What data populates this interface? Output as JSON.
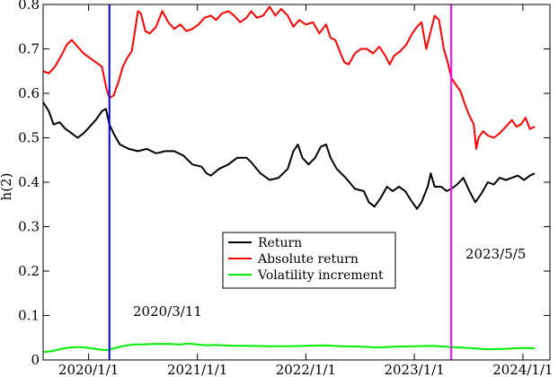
{
  "chart_data": {
    "type": "line",
    "title": "",
    "xlabel": "",
    "ylabel": "h(2)",
    "xlim": [
      "2019-08-01",
      "2024-04-01"
    ],
    "ylim": [
      0,
      0.8
    ],
    "x_ticks": [
      {
        "date": "2020-01-01",
        "label": "2020/1/1"
      },
      {
        "date": "2021-01-01",
        "label": "2021/1/1"
      },
      {
        "date": "2022-01-01",
        "label": "2022/1/1"
      },
      {
        "date": "2023-01-01",
        "label": "2023/1/1"
      },
      {
        "date": "2024-01-01",
        "label": "2024/1/1"
      }
    ],
    "y_ticks": [
      {
        "value": 0,
        "label": "0"
      },
      {
        "value": 0.1,
        "label": "0.1"
      },
      {
        "value": 0.2,
        "label": "0.2"
      },
      {
        "value": 0.3,
        "label": "0.3"
      },
      {
        "value": 0.4,
        "label": "0.4"
      },
      {
        "value": 0.5,
        "label": "0.5"
      },
      {
        "value": 0.6,
        "label": "0.6"
      },
      {
        "value": 0.7,
        "label": "0.7"
      },
      {
        "value": 0.8,
        "label": "0.8"
      }
    ],
    "grid": false,
    "legend_position": "center",
    "series": [
      {
        "name": "Return",
        "color": "#000000",
        "points": [
          [
            "2019-08-01",
            0.58
          ],
          [
            "2019-08-20",
            0.56
          ],
          [
            "2019-09-05",
            0.53
          ],
          [
            "2019-09-25",
            0.535
          ],
          [
            "2019-10-15",
            0.52
          ],
          [
            "2019-11-05",
            0.51
          ],
          [
            "2019-11-25",
            0.5
          ],
          [
            "2019-12-15",
            0.51
          ],
          [
            "2020-01-05",
            0.525
          ],
          [
            "2020-01-25",
            0.54
          ],
          [
            "2020-02-15",
            0.56
          ],
          [
            "2020-02-28",
            0.565
          ],
          [
            "2020-03-11",
            0.53
          ],
          [
            "2020-03-25",
            0.51
          ],
          [
            "2020-04-15",
            0.485
          ],
          [
            "2020-05-15",
            0.475
          ],
          [
            "2020-06-15",
            0.47
          ],
          [
            "2020-07-15",
            0.475
          ],
          [
            "2020-08-15",
            0.465
          ],
          [
            "2020-09-15",
            0.47
          ],
          [
            "2020-10-15",
            0.47
          ],
          [
            "2020-11-15",
            0.46
          ],
          [
            "2020-12-15",
            0.44
          ],
          [
            "2021-01-15",
            0.435
          ],
          [
            "2021-02-01",
            0.42
          ],
          [
            "2021-02-15",
            0.415
          ],
          [
            "2021-03-15",
            0.43
          ],
          [
            "2021-04-15",
            0.44
          ],
          [
            "2021-05-15",
            0.455
          ],
          [
            "2021-06-15",
            0.455
          ],
          [
            "2021-07-01",
            0.445
          ],
          [
            "2021-08-01",
            0.42
          ],
          [
            "2021-09-01",
            0.405
          ],
          [
            "2021-10-01",
            0.41
          ],
          [
            "2021-11-01",
            0.43
          ],
          [
            "2021-11-20",
            0.47
          ],
          [
            "2021-12-05",
            0.485
          ],
          [
            "2021-12-20",
            0.455
          ],
          [
            "2022-01-10",
            0.44
          ],
          [
            "2022-02-01",
            0.455
          ],
          [
            "2022-02-20",
            0.48
          ],
          [
            "2022-03-10",
            0.485
          ],
          [
            "2022-03-25",
            0.455
          ],
          [
            "2022-04-15",
            0.43
          ],
          [
            "2022-05-15",
            0.41
          ],
          [
            "2022-06-15",
            0.385
          ],
          [
            "2022-07-15",
            0.38
          ],
          [
            "2022-08-01",
            0.355
          ],
          [
            "2022-08-20",
            0.345
          ],
          [
            "2022-09-10",
            0.365
          ],
          [
            "2022-10-01",
            0.39
          ],
          [
            "2022-10-20",
            0.38
          ],
          [
            "2022-11-10",
            0.39
          ],
          [
            "2022-12-01",
            0.38
          ],
          [
            "2022-12-20",
            0.36
          ],
          [
            "2023-01-10",
            0.34
          ],
          [
            "2023-01-25",
            0.355
          ],
          [
            "2023-02-15",
            0.39
          ],
          [
            "2023-02-25",
            0.42
          ],
          [
            "2023-03-10",
            0.39
          ],
          [
            "2023-04-01",
            0.39
          ],
          [
            "2023-04-20",
            0.38
          ],
          [
            "2023-05-05",
            0.385
          ],
          [
            "2023-05-25",
            0.395
          ],
          [
            "2023-06-15",
            0.41
          ],
          [
            "2023-07-05",
            0.38
          ],
          [
            "2023-07-25",
            0.355
          ],
          [
            "2023-08-15",
            0.375
          ],
          [
            "2023-09-05",
            0.4
          ],
          [
            "2023-09-25",
            0.395
          ],
          [
            "2023-10-15",
            0.41
          ],
          [
            "2023-11-05",
            0.405
          ],
          [
            "2023-11-25",
            0.41
          ],
          [
            "2023-12-15",
            0.415
          ],
          [
            "2024-01-05",
            0.405
          ],
          [
            "2024-01-25",
            0.415
          ],
          [
            "2024-02-10",
            0.42
          ]
        ]
      },
      {
        "name": "Absolute return",
        "color": "#ff0000",
        "points": [
          [
            "2019-08-01",
            0.65
          ],
          [
            "2019-08-20",
            0.645
          ],
          [
            "2019-09-10",
            0.66
          ],
          [
            "2019-10-01",
            0.685
          ],
          [
            "2019-10-20",
            0.71
          ],
          [
            "2019-11-05",
            0.72
          ],
          [
            "2019-11-25",
            0.705
          ],
          [
            "2019-12-15",
            0.69
          ],
          [
            "2020-01-05",
            0.68
          ],
          [
            "2020-01-25",
            0.67
          ],
          [
            "2020-02-15",
            0.66
          ],
          [
            "2020-03-01",
            0.61
          ],
          [
            "2020-03-11",
            0.59
          ],
          [
            "2020-03-25",
            0.595
          ],
          [
            "2020-04-10",
            0.625
          ],
          [
            "2020-04-25",
            0.66
          ],
          [
            "2020-05-10",
            0.68
          ],
          [
            "2020-05-25",
            0.695
          ],
          [
            "2020-06-05",
            0.74
          ],
          [
            "2020-06-15",
            0.785
          ],
          [
            "2020-06-25",
            0.78
          ],
          [
            "2020-07-10",
            0.74
          ],
          [
            "2020-07-25",
            0.735
          ],
          [
            "2020-08-15",
            0.75
          ],
          [
            "2020-09-05",
            0.785
          ],
          [
            "2020-09-25",
            0.76
          ],
          [
            "2020-10-15",
            0.745
          ],
          [
            "2020-11-05",
            0.755
          ],
          [
            "2020-11-25",
            0.74
          ],
          [
            "2020-12-15",
            0.745
          ],
          [
            "2021-01-05",
            0.755
          ],
          [
            "2021-01-25",
            0.77
          ],
          [
            "2021-02-15",
            0.775
          ],
          [
            "2021-03-05",
            0.765
          ],
          [
            "2021-03-25",
            0.78
          ],
          [
            "2021-04-15",
            0.785
          ],
          [
            "2021-05-05",
            0.775
          ],
          [
            "2021-05-25",
            0.76
          ],
          [
            "2021-06-15",
            0.77
          ],
          [
            "2021-07-01",
            0.785
          ],
          [
            "2021-07-20",
            0.77
          ],
          [
            "2021-08-10",
            0.775
          ],
          [
            "2021-09-01",
            0.795
          ],
          [
            "2021-09-20",
            0.775
          ],
          [
            "2021-10-10",
            0.79
          ],
          [
            "2021-11-01",
            0.775
          ],
          [
            "2021-11-20",
            0.75
          ],
          [
            "2021-12-10",
            0.765
          ],
          [
            "2022-01-01",
            0.755
          ],
          [
            "2022-01-25",
            0.76
          ],
          [
            "2022-02-15",
            0.735
          ],
          [
            "2022-03-10",
            0.755
          ],
          [
            "2022-03-25",
            0.725
          ],
          [
            "2022-04-10",
            0.72
          ],
          [
            "2022-04-25",
            0.695
          ],
          [
            "2022-05-10",
            0.67
          ],
          [
            "2022-05-25",
            0.665
          ],
          [
            "2022-06-15",
            0.69
          ],
          [
            "2022-07-05",
            0.7
          ],
          [
            "2022-07-25",
            0.7
          ],
          [
            "2022-08-15",
            0.69
          ],
          [
            "2022-09-05",
            0.705
          ],
          [
            "2022-09-25",
            0.685
          ],
          [
            "2022-10-10",
            0.665
          ],
          [
            "2022-10-25",
            0.685
          ],
          [
            "2022-11-15",
            0.695
          ],
          [
            "2022-12-05",
            0.71
          ],
          [
            "2022-12-25",
            0.735
          ],
          [
            "2023-01-10",
            0.75
          ],
          [
            "2023-01-25",
            0.76
          ],
          [
            "2023-02-10",
            0.7
          ],
          [
            "2023-02-25",
            0.74
          ],
          [
            "2023-03-10",
            0.775
          ],
          [
            "2023-03-25",
            0.765
          ],
          [
            "2023-04-10",
            0.7
          ],
          [
            "2023-04-25",
            0.665
          ],
          [
            "2023-05-05",
            0.635
          ],
          [
            "2023-05-20",
            0.62
          ],
          [
            "2023-06-05",
            0.605
          ],
          [
            "2023-06-20",
            0.575
          ],
          [
            "2023-07-05",
            0.55
          ],
          [
            "2023-07-20",
            0.53
          ],
          [
            "2023-07-28",
            0.475
          ],
          [
            "2023-08-05",
            0.5
          ],
          [
            "2023-08-20",
            0.515
          ],
          [
            "2023-09-05",
            0.505
          ],
          [
            "2023-09-25",
            0.5
          ],
          [
            "2023-10-15",
            0.51
          ],
          [
            "2023-11-05",
            0.525
          ],
          [
            "2023-11-25",
            0.54
          ],
          [
            "2023-12-10",
            0.525
          ],
          [
            "2023-12-25",
            0.53
          ],
          [
            "2024-01-10",
            0.545
          ],
          [
            "2024-01-25",
            0.52
          ],
          [
            "2024-02-10",
            0.525
          ]
        ]
      },
      {
        "name": "Volatility increment",
        "color": "#00ee00",
        "points": [
          [
            "2019-08-01",
            0.018
          ],
          [
            "2019-09-01",
            0.02
          ],
          [
            "2019-10-01",
            0.025
          ],
          [
            "2019-11-01",
            0.028
          ],
          [
            "2019-12-01",
            0.029
          ],
          [
            "2020-01-01",
            0.027
          ],
          [
            "2020-02-01",
            0.024
          ],
          [
            "2020-03-01",
            0.022
          ],
          [
            "2020-04-01",
            0.027
          ],
          [
            "2020-05-01",
            0.032
          ],
          [
            "2020-06-01",
            0.035
          ],
          [
            "2020-07-01",
            0.035
          ],
          [
            "2020-08-01",
            0.036
          ],
          [
            "2020-09-01",
            0.036
          ],
          [
            "2020-10-01",
            0.036
          ],
          [
            "2020-11-01",
            0.035
          ],
          [
            "2020-12-01",
            0.037
          ],
          [
            "2021-01-01",
            0.035
          ],
          [
            "2021-02-01",
            0.033
          ],
          [
            "2021-03-01",
            0.034
          ],
          [
            "2021-05-01",
            0.032
          ],
          [
            "2021-07-01",
            0.032
          ],
          [
            "2021-09-01",
            0.031
          ],
          [
            "2021-11-01",
            0.031
          ],
          [
            "2022-01-01",
            0.032
          ],
          [
            "2022-03-01",
            0.033
          ],
          [
            "2022-05-01",
            0.031
          ],
          [
            "2022-07-01",
            0.03
          ],
          [
            "2022-09-01",
            0.028
          ],
          [
            "2022-11-01",
            0.03
          ],
          [
            "2023-01-01",
            0.031
          ],
          [
            "2023-03-01",
            0.032
          ],
          [
            "2023-05-01",
            0.029
          ],
          [
            "2023-07-01",
            0.027
          ],
          [
            "2023-09-01",
            0.024
          ],
          [
            "2023-11-01",
            0.025
          ],
          [
            "2024-01-01",
            0.027
          ],
          [
            "2024-02-10",
            0.026
          ]
        ]
      }
    ],
    "reference_lines": [
      {
        "date": "2020-03-11",
        "label": "2020/3/11",
        "color": "#0000ff"
      },
      {
        "date": "2023-05-05",
        "label": "2023/5/5",
        "color": "#ff00ff"
      }
    ]
  }
}
